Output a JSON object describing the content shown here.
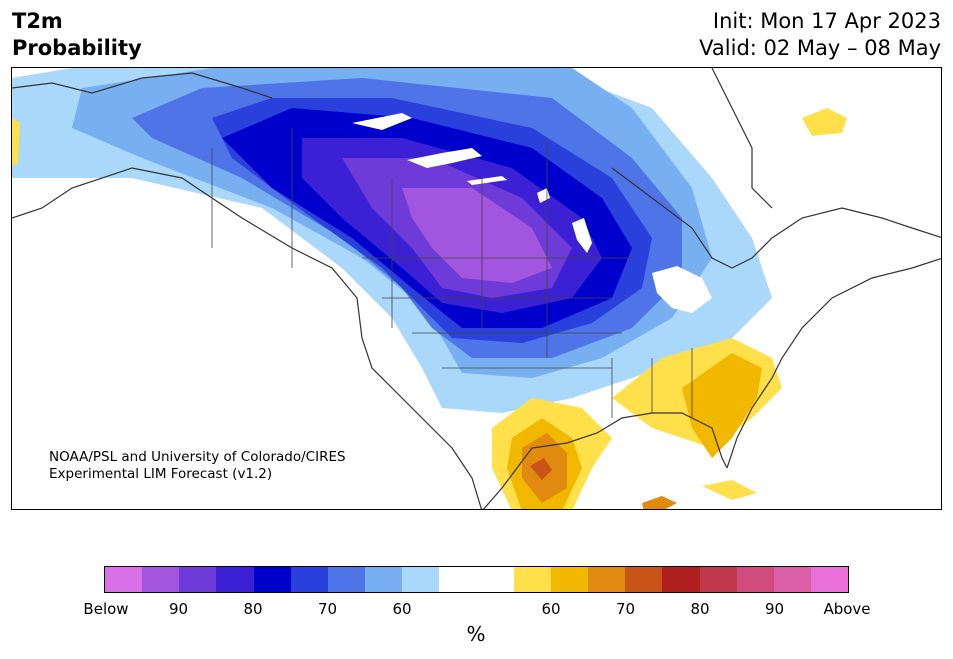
{
  "header": {
    "title_line1": "T2m",
    "title_line2": "Probability",
    "init": "Init: Mon 17 Apr 2023",
    "valid": "Valid: 02 May – 08 May"
  },
  "credit": {
    "line1": "NOAA/PSL and University of Colorado/CIRES",
    "line2": "Experimental LIM Forecast (v1.2)"
  },
  "colorbar": {
    "colors": [
      "#d870e8",
      "#a256e0",
      "#6e3ad8",
      "#3c20d4",
      "#0000cc",
      "#2a40dc",
      "#4e74e8",
      "#78aff0",
      "#aad8fa",
      "#ffffff",
      "#ffffff",
      "#ffe04a",
      "#f2b800",
      "#e08a10",
      "#c85418",
      "#b02020",
      "#c0384c",
      "#d04c7c",
      "#dc60a8",
      "#e870d8"
    ],
    "labels": [
      "Below",
      "90",
      "80",
      "70",
      "60",
      "60",
      "70",
      "80",
      "90",
      "Above"
    ],
    "units": "%"
  },
  "legend_colors": {
    "below_most": "#d870e8",
    "below_light": "#aad8fa",
    "neutral": "#ffffff",
    "above_light": "#ffe04a",
    "above_most": "#e870d8"
  }
}
